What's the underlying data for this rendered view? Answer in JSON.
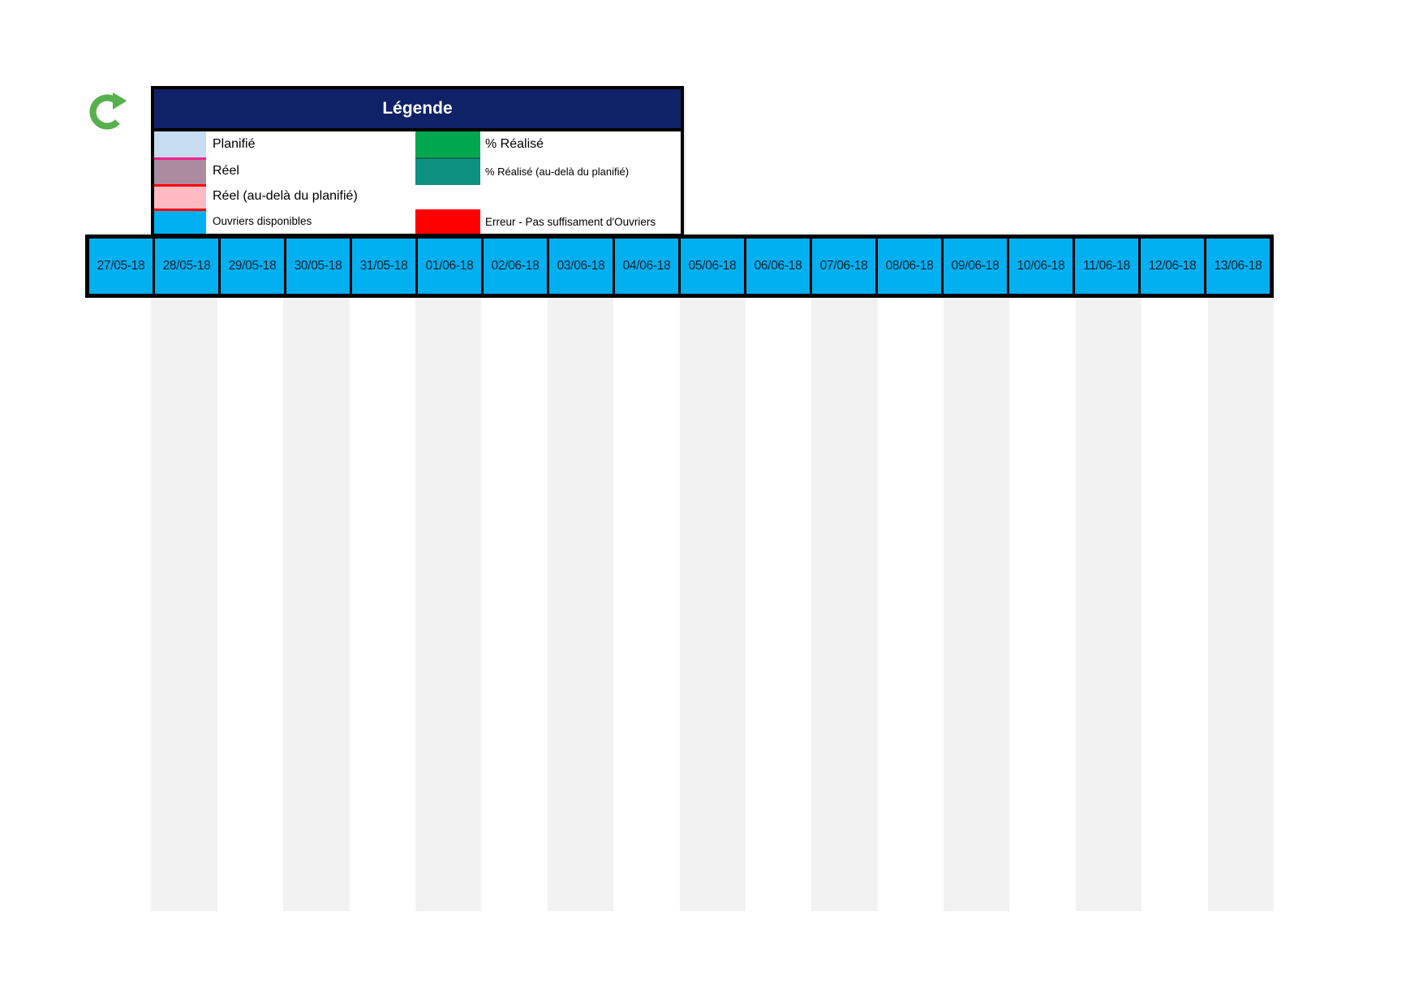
{
  "icons": {
    "refresh": "clockwise-refresh-arrow",
    "refresh_color": "#57b04c"
  },
  "legend": {
    "title": "Légende",
    "header_bg": "#0f2167",
    "left_items": [
      {
        "label": "Planifié",
        "color": "#c7dcf0",
        "sep": "none"
      },
      {
        "label": "Réel",
        "color": "#ac8ba0",
        "sep": "#f0238e"
      },
      {
        "label": "Réel (au-delà du planifié)",
        "color": "#ffbac2",
        "sep": "#ff0000"
      },
      {
        "label": "Ouvriers disponibles",
        "color": "#00b0f0",
        "sep": "#ff0000"
      }
    ],
    "right_items": [
      {
        "label": "% Réalisé",
        "color": "#00a74e"
      },
      {
        "label": "% Réalisé (au-delà du planifié)",
        "color": "#0d9180"
      },
      {
        "label": "Erreur - Pas suffisament d'Ouvriers",
        "color": "#ff0000"
      }
    ]
  },
  "timeline": {
    "dates": [
      "27/05-18",
      "28/05-18",
      "29/05-18",
      "30/05-18",
      "31/05-18",
      "01/06-18",
      "02/06-18",
      "03/06-18",
      "04/06-18",
      "05/06-18",
      "06/06-18",
      "07/06-18",
      "08/06-18",
      "09/06-18",
      "10/06-18",
      "11/06-18",
      "12/06-18",
      "13/06-18"
    ],
    "cell_color": "#00b0f0",
    "stripe_color": "#f2f2f2",
    "border_color": "#000000"
  }
}
